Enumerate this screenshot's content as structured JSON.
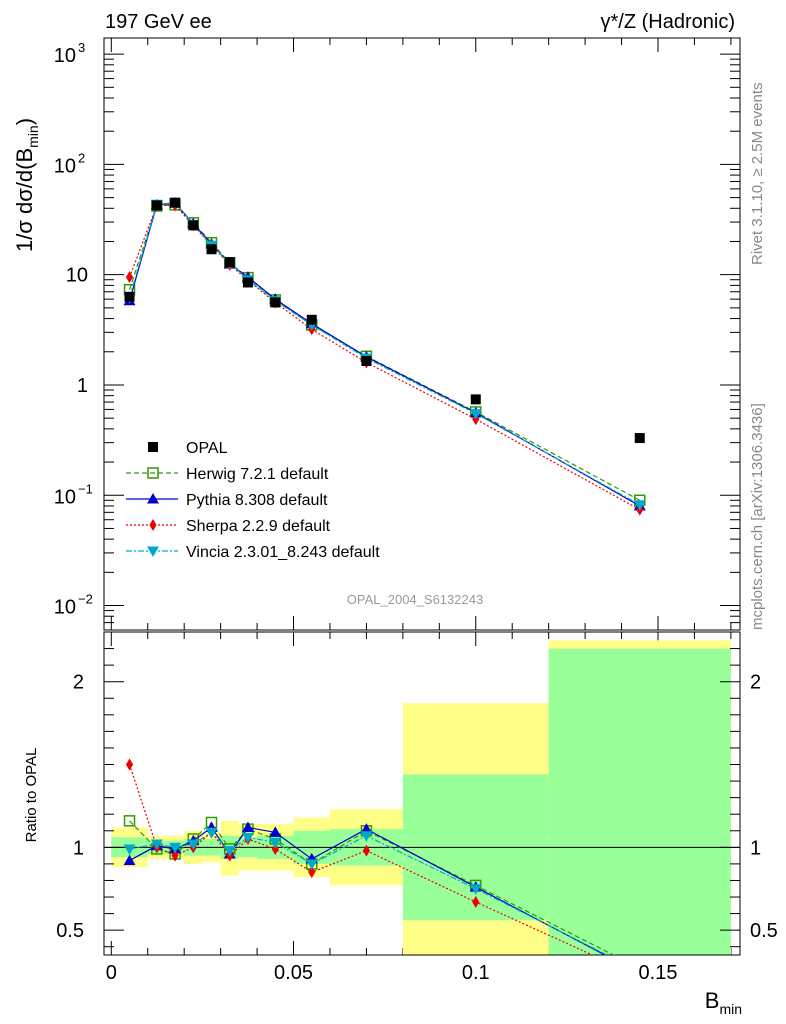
{
  "header": {
    "left_title": "197 GeV ee",
    "right_title": "γ*/Z (Hadronic)",
    "analysis_id": "OPAL_2004_S6132243",
    "side_label_1": "Rivet 3.1.10, ≥ 2.5M events",
    "side_label_2": "mcplots.cern.ch [arXiv:1306.3436]"
  },
  "chart_data": [
    {
      "type": "line",
      "ylabel_parts": [
        "1/σ dσ/d(B",
        "min",
        ")"
      ],
      "yscale": "log",
      "ylim": [
        0.006,
        1400
      ],
      "xlim": [
        -0.002,
        0.1725
      ],
      "y_tick_labels": [
        {
          "value": 0.01,
          "base": "10",
          "exp": "−2"
        },
        {
          "value": 0.1,
          "base": "10",
          "exp": "−1"
        },
        {
          "value": 1,
          "base": "1",
          "exp": ""
        },
        {
          "value": 10,
          "base": "10",
          "exp": ""
        },
        {
          "value": 100,
          "base": "10",
          "exp": "2"
        },
        {
          "value": 1000,
          "base": "10",
          "exp": "3"
        }
      ],
      "data": {
        "name": "OPAL",
        "x": [
          0.005,
          0.0125,
          0.0175,
          0.0225,
          0.0275,
          0.0325,
          0.0375,
          0.045,
          0.055,
          0.07,
          0.1,
          0.145
        ],
        "y": [
          6.3,
          42.5,
          45.0,
          28.0,
          17.0,
          13.0,
          8.5,
          5.6,
          3.9,
          1.65,
          0.74,
          0.33
        ]
      },
      "series": [
        {
          "name": "Herwig 7.2.1 default",
          "color": "#339900",
          "marker": "open-square",
          "dash": "5,3",
          "x": [
            0.005,
            0.0125,
            0.0175,
            0.0225,
            0.0275,
            0.0325,
            0.0375,
            0.045,
            0.055,
            0.07,
            0.1,
            0.145
          ],
          "y": [
            7.3,
            42.0,
            43.0,
            29.5,
            19.5,
            12.8,
            9.4,
            5.9,
            3.5,
            1.82,
            0.57,
            0.09
          ]
        },
        {
          "name": "Pythia 8.308 default",
          "color": "#0000cc",
          "marker": "triangle-up",
          "dash": "",
          "x": [
            0.005,
            0.0125,
            0.0175,
            0.0225,
            0.0275,
            0.0325,
            0.0375,
            0.045,
            0.055,
            0.07,
            0.1,
            0.145
          ],
          "y": [
            5.8,
            43.0,
            44.5,
            29.0,
            19.0,
            12.5,
            9.5,
            6.0,
            3.6,
            1.8,
            0.56,
            0.08
          ]
        },
        {
          "name": "Sherpa 2.2.9 default",
          "color": "#ee0000",
          "marker": "diamond",
          "dash": "2,2",
          "x": [
            0.005,
            0.0125,
            0.0175,
            0.0225,
            0.0275,
            0.0325,
            0.0375,
            0.045,
            0.055,
            0.07,
            0.1,
            0.145
          ],
          "y": [
            9.5,
            42.5,
            42.5,
            28.0,
            18.5,
            12.3,
            8.9,
            5.6,
            3.2,
            1.6,
            0.49,
            0.074
          ]
        },
        {
          "name": "Vincia 2.3.01_8.243 default",
          "color": "#00aacc",
          "marker": "triangle-down",
          "dash": "6,2,2,2",
          "x": [
            0.005,
            0.0125,
            0.0175,
            0.0225,
            0.0275,
            0.0325,
            0.0375,
            0.045,
            0.055,
            0.07,
            0.1,
            0.145
          ],
          "y": [
            6.2,
            43.5,
            45.0,
            28.5,
            18.5,
            12.8,
            9.0,
            5.8,
            3.5,
            1.75,
            0.55,
            0.082
          ]
        }
      ]
    },
    {
      "type": "line",
      "ylabel": "Ratio to OPAL",
      "xlabel_parts": [
        "B",
        "min"
      ],
      "ylim": [
        0.35,
        2.3
      ],
      "xlim": [
        -0.002,
        0.1725
      ],
      "x_ticks": [
        0,
        0.05,
        0.1,
        0.15
      ],
      "x_tick_labels": [
        "0",
        "0.05",
        "0.1",
        "0.15"
      ],
      "y_ticks": [
        0.5,
        1,
        2
      ],
      "y_tick_labels": [
        "0.5",
        "1",
        "2"
      ],
      "bands": [
        {
          "x0": 0,
          "x1": 0.01,
          "green": [
            0.94,
            1.06
          ],
          "yellow": [
            0.88,
            1.12
          ]
        },
        {
          "x0": 0.01,
          "x1": 0.015,
          "green": [
            0.96,
            1.04
          ],
          "yellow": [
            0.93,
            1.07
          ]
        },
        {
          "x0": 0.015,
          "x1": 0.02,
          "green": [
            0.96,
            1.04
          ],
          "yellow": [
            0.93,
            1.07
          ]
        },
        {
          "x0": 0.02,
          "x1": 0.025,
          "green": [
            0.95,
            1.05
          ],
          "yellow": [
            0.9,
            1.1
          ]
        },
        {
          "x0": 0.025,
          "x1": 0.03,
          "green": [
            0.95,
            1.05
          ],
          "yellow": [
            0.91,
            1.09
          ]
        },
        {
          "x0": 0.03,
          "x1": 0.035,
          "green": [
            0.93,
            1.07
          ],
          "yellow": [
            0.83,
            1.16
          ]
        },
        {
          "x0": 0.035,
          "x1": 0.04,
          "green": [
            0.94,
            1.06
          ],
          "yellow": [
            0.86,
            1.14
          ]
        },
        {
          "x0": 0.04,
          "x1": 0.05,
          "green": [
            0.93,
            1.07
          ],
          "yellow": [
            0.86,
            1.14
          ]
        },
        {
          "x0": 0.05,
          "x1": 0.06,
          "green": [
            0.9,
            1.1
          ],
          "yellow": [
            0.82,
            1.18
          ]
        },
        {
          "x0": 0.06,
          "x1": 0.08,
          "green": [
            0.89,
            1.11
          ],
          "yellow": [
            0.77,
            1.23
          ]
        },
        {
          "x0": 0.08,
          "x1": 0.12,
          "green": [
            0.56,
            1.44
          ],
          "yellow": [
            0.13,
            1.87
          ]
        },
        {
          "x0": 0.12,
          "x1": 0.17,
          "green": [
            0.05,
            2.2
          ],
          "yellow": [
            0.05,
            2.25
          ]
        }
      ],
      "series": [
        {
          "name": "Herwig 7.2.1 default",
          "x": [
            0.005,
            0.0125,
            0.0175,
            0.0225,
            0.0275,
            0.0325,
            0.0375,
            0.045,
            0.055,
            0.07,
            0.1,
            0.145
          ],
          "y": [
            1.16,
            0.99,
            0.96,
            1.05,
            1.15,
            0.99,
            1.11,
            1.05,
            0.9,
            1.1,
            0.77,
            0.27
          ]
        },
        {
          "name": "Pythia 8.308 default",
          "x": [
            0.005,
            0.0125,
            0.0175,
            0.0225,
            0.0275,
            0.0325,
            0.0375,
            0.045,
            0.055,
            0.07,
            0.1,
            0.145
          ],
          "y": [
            0.92,
            1.01,
            0.99,
            1.04,
            1.12,
            0.96,
            1.12,
            1.09,
            0.93,
            1.11,
            0.76,
            0.24
          ]
        },
        {
          "name": "Sherpa 2.2.9 default",
          "x": [
            0.005,
            0.0125,
            0.0175,
            0.0225,
            0.0275,
            0.0325,
            0.0375,
            0.045,
            0.055,
            0.07,
            0.1,
            0.145
          ],
          "y": [
            1.5,
            1.0,
            0.95,
            1.0,
            1.09,
            0.95,
            1.05,
            0.99,
            0.85,
            0.98,
            0.67,
            0.22
          ]
        },
        {
          "name": "Vincia 2.3.01_8.243 default",
          "x": [
            0.005,
            0.0125,
            0.0175,
            0.0225,
            0.0275,
            0.0325,
            0.0375,
            0.045,
            0.055,
            0.07,
            0.1,
            0.145
          ],
          "y": [
            0.99,
            1.02,
            1.0,
            1.02,
            1.09,
            0.98,
            1.06,
            1.03,
            0.9,
            1.07,
            0.75,
            0.25
          ]
        }
      ]
    }
  ]
}
